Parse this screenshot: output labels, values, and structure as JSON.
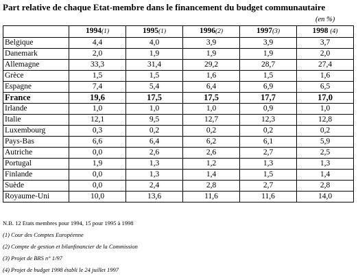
{
  "title": "Part relative de chaque Etat-membre dans le financement du budget communautaire",
  "unit": "(en %)",
  "columns": [
    {
      "year": "1994",
      "note": "(1)"
    },
    {
      "year": "1995",
      "note": "(1)"
    },
    {
      "year": "1996",
      "note": "(2)"
    },
    {
      "year": "1997",
      "note": "(3)"
    },
    {
      "year": "1998",
      "note": "(4)"
    }
  ],
  "rows": [
    {
      "country": "Belgique",
      "values": [
        "4,4",
        "4,0",
        "3,9",
        "3,9",
        "3,7"
      ],
      "bold": false
    },
    {
      "country": "Danemark",
      "values": [
        "2,0",
        "1,9",
        "1,9",
        "1,9",
        "2,0"
      ],
      "bold": false
    },
    {
      "country": "Allemagne",
      "values": [
        "33,3",
        "31,4",
        "29,2",
        "28,7",
        "27,4"
      ],
      "bold": false
    },
    {
      "country": "Grèce",
      "values": [
        "1,5",
        "1,5",
        "1,6",
        "1,5",
        "1,6"
      ],
      "bold": false
    },
    {
      "country": "Espagne",
      "values": [
        "7,4",
        "5,4",
        "6,4",
        "6,9",
        "6,5"
      ],
      "bold": false
    },
    {
      "country": "France",
      "values": [
        "19,6",
        "17,5",
        "17,5",
        "17,7",
        "17,0"
      ],
      "bold": true
    },
    {
      "country": "Irlande",
      "values": [
        "1,0",
        "1,0",
        "1,0",
        "0,9",
        "1,0"
      ],
      "bold": false
    },
    {
      "country": "Italie",
      "values": [
        "12,1",
        "9,5",
        "12,7",
        "12,3",
        "12,8"
      ],
      "bold": false
    },
    {
      "country": "Luxembourg",
      "values": [
        "0,3",
        "0,2",
        "0,2",
        "0,2",
        "0,2"
      ],
      "bold": false
    },
    {
      "country": "Pays-Bas",
      "values": [
        "6,6",
        "6,4",
        "6,2",
        "6,1",
        "5,9"
      ],
      "bold": false
    },
    {
      "country": "Autriche",
      "values": [
        "0,0",
        "2,6",
        "2,6",
        "2,7",
        "2,5"
      ],
      "bold": false
    },
    {
      "country": "Portugal",
      "values": [
        "1,9",
        "1,3",
        "1,2",
        "1,3",
        "1,3"
      ],
      "bold": false
    },
    {
      "country": "Finlande",
      "values": [
        "0,0",
        "1,3",
        "1,4",
        "1,5",
        "1,4"
      ],
      "bold": false
    },
    {
      "country": "Suède",
      "values": [
        "0,0",
        "2,4",
        "2,8",
        "2,7",
        "2,8"
      ],
      "bold": false
    },
    {
      "country": "Royaume-Uni",
      "values": [
        "10,0",
        "13,6",
        "11,6",
        "11,6",
        "14,0"
      ],
      "bold": false
    }
  ],
  "nb": "N.B. 12 Etats membres pour 1994, 15 pour 1995 à 1998",
  "footnotes": [
    "(1) Cour des Comptes Européenne",
    "(2) Compte de gestion et bilanfinancier de la Commission",
    "(3) Projet de BRS n° 1/97",
    "(4) Projet de budget 1998 établi le 24 juillet 1997"
  ]
}
